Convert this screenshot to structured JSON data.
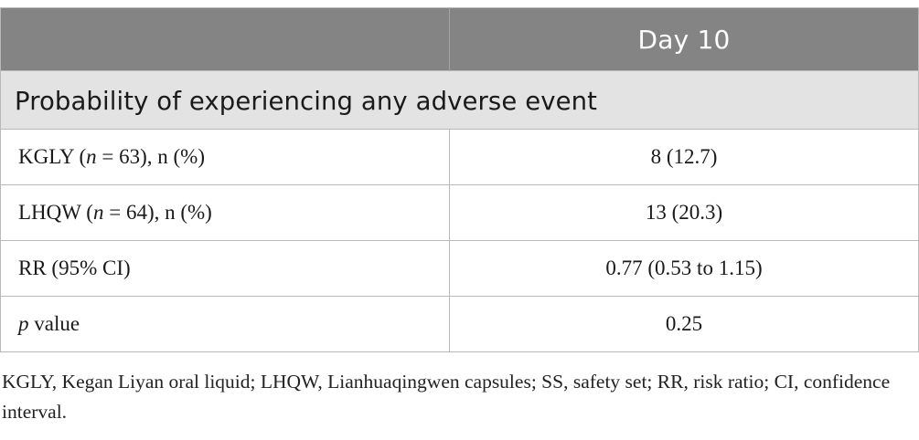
{
  "table": {
    "header": {
      "label_col": "",
      "value_col": "Day 10"
    },
    "section_title": "Probability of experiencing any adverse event",
    "rows": [
      {
        "label_main": "KGLY (",
        "label_italic": "n",
        "label_rest": " = 63), n (%)",
        "value": "8 (12.7)"
      },
      {
        "label_main": "LHQW (",
        "label_italic": "n",
        "label_rest": " = 64), n (%)",
        "value": "13 (20.3)"
      },
      {
        "label_main": "RR (95% CI)",
        "label_italic": "",
        "label_rest": "",
        "value": "0.77 (0.53 to 1.15)"
      },
      {
        "label_main": "",
        "label_italic": "p",
        "label_rest": " value",
        "value": "0.25"
      }
    ]
  },
  "footnote": "KGLY, Kegan Liyan oral liquid; LHQW, Lianhuaqingwen capsules; SS, safety set; RR, risk ratio; CI, confidence interval."
}
